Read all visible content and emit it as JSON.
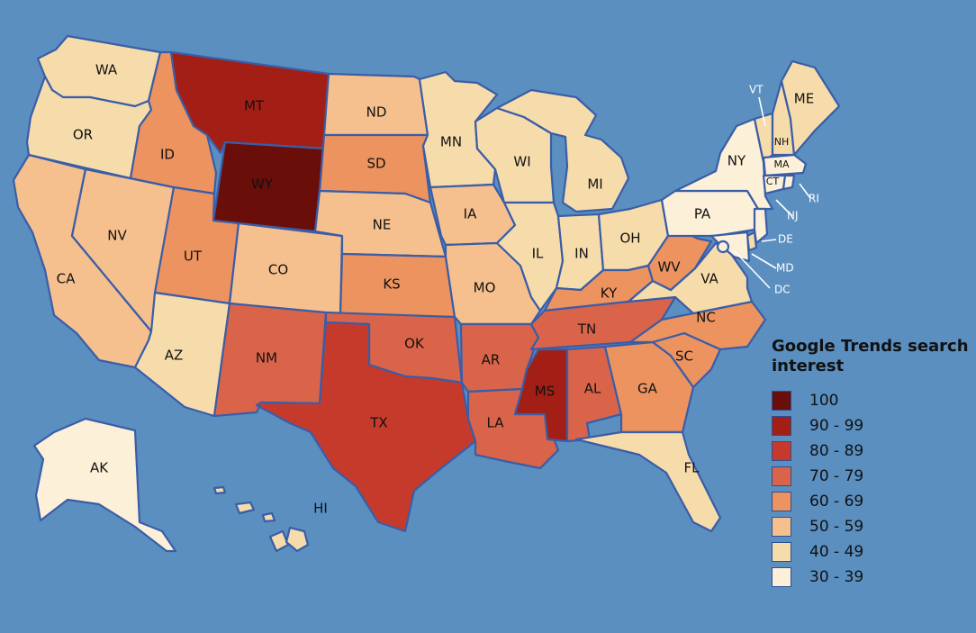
{
  "colors": {
    "ocean": "#5a8fc0",
    "border": "#3a5da8",
    "scale": {
      "100": "#6a0e0a",
      "90-99": "#a31f16",
      "80-89": "#c63a2b",
      "70-79": "#da6449",
      "60-69": "#ec935f",
      "50-59": "#f5c08e",
      "40-49": "#f7dcab",
      "30-39": "#fdf0d9"
    }
  },
  "legend": {
    "title": "Google Trends search interest",
    "items": [
      {
        "label": "100",
        "bin": "100"
      },
      {
        "label": "90 - 99",
        "bin": "90-99"
      },
      {
        "label": "80 - 89",
        "bin": "80-89"
      },
      {
        "label": "70 - 79",
        "bin": "70-79"
      },
      {
        "label": "60 - 69",
        "bin": "60-69"
      },
      {
        "label": "50 - 59",
        "bin": "50-59"
      },
      {
        "label": "40 - 49",
        "bin": "40-49"
      },
      {
        "label": "30 - 39",
        "bin": "30-39"
      }
    ]
  },
  "states": [
    {
      "abbr": "WA",
      "bin": "40-49"
    },
    {
      "abbr": "OR",
      "bin": "40-49"
    },
    {
      "abbr": "CA",
      "bin": "50-59"
    },
    {
      "abbr": "NV",
      "bin": "50-59"
    },
    {
      "abbr": "ID",
      "bin": "60-69"
    },
    {
      "abbr": "MT",
      "bin": "90-99"
    },
    {
      "abbr": "WY",
      "bin": "100"
    },
    {
      "abbr": "UT",
      "bin": "60-69"
    },
    {
      "abbr": "AZ",
      "bin": "40-49"
    },
    {
      "abbr": "CO",
      "bin": "50-59"
    },
    {
      "abbr": "NM",
      "bin": "70-79"
    },
    {
      "abbr": "ND",
      "bin": "50-59"
    },
    {
      "abbr": "SD",
      "bin": "60-69"
    },
    {
      "abbr": "NE",
      "bin": "50-59"
    },
    {
      "abbr": "KS",
      "bin": "60-69"
    },
    {
      "abbr": "OK",
      "bin": "70-79"
    },
    {
      "abbr": "TX",
      "bin": "80-89"
    },
    {
      "abbr": "MN",
      "bin": "40-49"
    },
    {
      "abbr": "IA",
      "bin": "50-59"
    },
    {
      "abbr": "MO",
      "bin": "50-59"
    },
    {
      "abbr": "AR",
      "bin": "70-79"
    },
    {
      "abbr": "LA",
      "bin": "70-79"
    },
    {
      "abbr": "WI",
      "bin": "40-49"
    },
    {
      "abbr": "IL",
      "bin": "40-49"
    },
    {
      "abbr": "MI",
      "bin": "40-49"
    },
    {
      "abbr": "IN",
      "bin": "40-49"
    },
    {
      "abbr": "OH",
      "bin": "40-49"
    },
    {
      "abbr": "KY",
      "bin": "60-69"
    },
    {
      "abbr": "TN",
      "bin": "70-79"
    },
    {
      "abbr": "MS",
      "bin": "90-99"
    },
    {
      "abbr": "AL",
      "bin": "70-79"
    },
    {
      "abbr": "GA",
      "bin": "60-69"
    },
    {
      "abbr": "FL",
      "bin": "40-49"
    },
    {
      "abbr": "SC",
      "bin": "60-69"
    },
    {
      "abbr": "NC",
      "bin": "60-69"
    },
    {
      "abbr": "VA",
      "bin": "40-49"
    },
    {
      "abbr": "WV",
      "bin": "60-69"
    },
    {
      "abbr": "PA",
      "bin": "30-39"
    },
    {
      "abbr": "NY",
      "bin": "30-39"
    },
    {
      "abbr": "VT",
      "bin": "40-49"
    },
    {
      "abbr": "NH",
      "bin": "40-49"
    },
    {
      "abbr": "ME",
      "bin": "40-49"
    },
    {
      "abbr": "MA",
      "bin": "30-39"
    },
    {
      "abbr": "CT",
      "bin": "30-39"
    },
    {
      "abbr": "RI",
      "bin": "30-39"
    },
    {
      "abbr": "NJ",
      "bin": "30-39"
    },
    {
      "abbr": "DE",
      "bin": "40-49"
    },
    {
      "abbr": "MD",
      "bin": "30-39"
    },
    {
      "abbr": "DC",
      "bin": "30-39"
    },
    {
      "abbr": "AK",
      "bin": "30-39"
    },
    {
      "abbr": "HI",
      "bin": "40-49"
    }
  ]
}
